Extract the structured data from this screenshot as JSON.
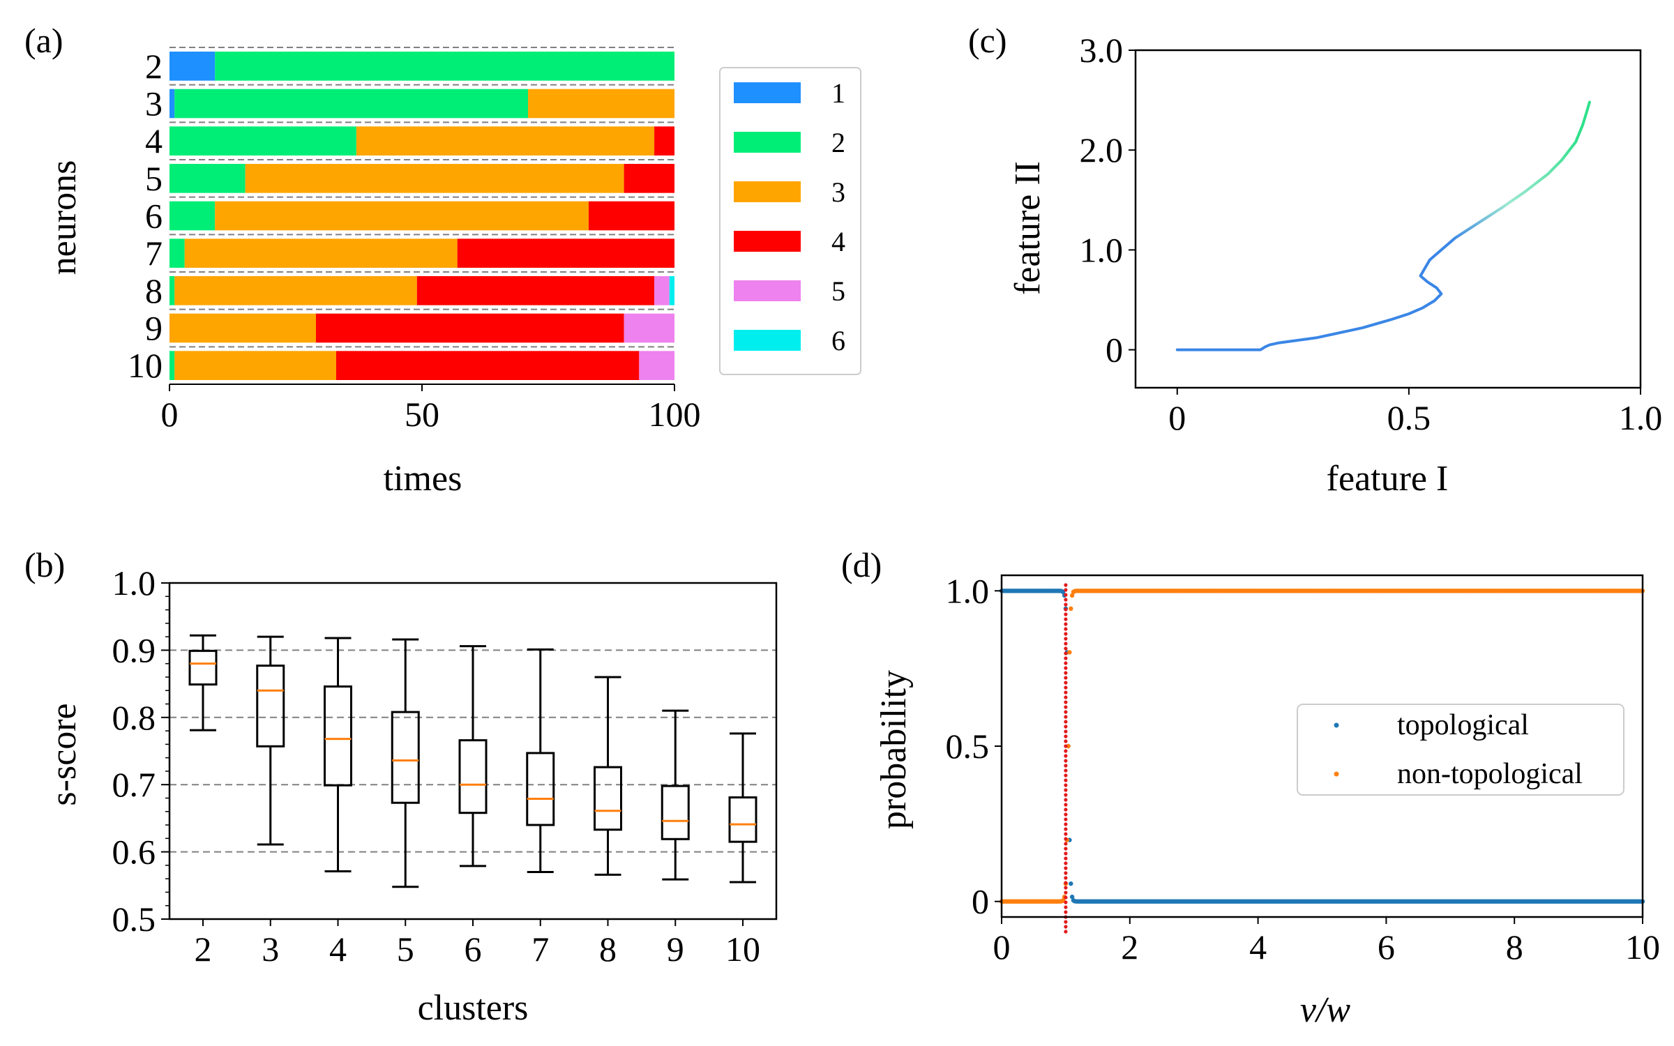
{
  "colors": {
    "c1": "#1e90ff",
    "c2": "#00ee76",
    "c3": "#ffa500",
    "c4": "#ff0000",
    "c5": "#ee82ee",
    "c6": "#00eeee",
    "mplblue": "#1f77b4",
    "mplorange": "#ff7f0e",
    "median": "#ff7f0e",
    "grid": "#808080",
    "critical": "#e31a1c"
  },
  "chart_data": [
    {
      "id": "a",
      "panel_label": "(a)",
      "type": "bar",
      "stacked": true,
      "orientation": "horizontal",
      "xlabel": "times",
      "ylabel": "neurons",
      "xlim": [
        0,
        100
      ],
      "xticks": [
        "0",
        "50",
        "100"
      ],
      "xtick_values": [
        0,
        50,
        100
      ],
      "categories": [
        "2",
        "3",
        "4",
        "5",
        "6",
        "7",
        "8",
        "9",
        "10"
      ],
      "legend_labels": [
        "1",
        "2",
        "3",
        "4",
        "5",
        "6"
      ],
      "legend_position": "right, outside",
      "series": [
        {
          "name": "1",
          "values": [
            9,
            1,
            0,
            0,
            0,
            0,
            0,
            0,
            0
          ]
        },
        {
          "name": "2",
          "values": [
            91,
            70,
            37,
            15,
            9,
            3,
            1,
            0,
            1
          ]
        },
        {
          "name": "3",
          "values": [
            0,
            29,
            59,
            75,
            74,
            54,
            48,
            29,
            32
          ]
        },
        {
          "name": "4",
          "values": [
            0,
            0,
            4,
            10,
            17,
            43,
            47,
            61,
            60
          ]
        },
        {
          "name": "5",
          "values": [
            0,
            0,
            0,
            0,
            0,
            0,
            3,
            10,
            7
          ]
        },
        {
          "name": "6",
          "values": [
            0,
            0,
            0,
            0,
            0,
            0,
            1,
            0,
            0
          ]
        }
      ],
      "grid": "dashed separators between rows"
    },
    {
      "id": "b",
      "panel_label": "(b)",
      "type": "box",
      "xlabel": "clusters",
      "ylabel": "s-score",
      "ylim": [
        0.5,
        1.0
      ],
      "yticks": [
        "0.5",
        "0.6",
        "0.7",
        "0.8",
        "0.9",
        "1.0"
      ],
      "ytick_values": [
        0.5,
        0.6,
        0.7,
        0.8,
        0.9,
        1.0
      ],
      "gridlines": [
        0.6,
        0.7,
        0.8,
        0.9
      ],
      "categories": [
        "2",
        "3",
        "4",
        "5",
        "6",
        "7",
        "8",
        "9",
        "10"
      ],
      "boxes": [
        {
          "whislo": 0.781,
          "q1": 0.849,
          "med": 0.88,
          "q3": 0.899,
          "whishi": 0.922
        },
        {
          "whislo": 0.611,
          "q1": 0.757,
          "med": 0.84,
          "q3": 0.877,
          "whishi": 0.92
        },
        {
          "whislo": 0.571,
          "q1": 0.699,
          "med": 0.768,
          "q3": 0.846,
          "whishi": 0.918
        },
        {
          "whislo": 0.548,
          "q1": 0.673,
          "med": 0.736,
          "q3": 0.808,
          "whishi": 0.916
        },
        {
          "whislo": 0.579,
          "q1": 0.658,
          "med": 0.7,
          "q3": 0.766,
          "whishi": 0.906
        },
        {
          "whislo": 0.57,
          "q1": 0.64,
          "med": 0.679,
          "q3": 0.747,
          "whishi": 0.901
        },
        {
          "whislo": 0.566,
          "q1": 0.633,
          "med": 0.661,
          "q3": 0.726,
          "whishi": 0.86
        },
        {
          "whislo": 0.559,
          "q1": 0.619,
          "med": 0.646,
          "q3": 0.698,
          "whishi": 0.81
        },
        {
          "whislo": 0.555,
          "q1": 0.615,
          "med": 0.641,
          "q3": 0.681,
          "whishi": 0.776
        }
      ]
    },
    {
      "id": "c",
      "panel_label": "(c)",
      "type": "line",
      "xlabel": "feature I",
      "ylabel": "feature II",
      "xlim": [
        -0.09,
        1.0
      ],
      "ylim": [
        -0.38,
        3.0
      ],
      "xticks": [
        "0",
        "0.5",
        "1.0"
      ],
      "xtick_values": [
        0,
        0.5,
        1.0
      ],
      "yticks": [
        "0",
        "1.0",
        "2.0",
        "3.0"
      ],
      "ytick_values": [
        0,
        1.0,
        2.0,
        3.0
      ],
      "color_gradient": [
        "#3a86e6",
        "#9ee8d2",
        "#2ee08a"
      ],
      "x": [
        0.0,
        0.1,
        0.18,
        0.19,
        0.2,
        0.22,
        0.3,
        0.4,
        0.46,
        0.5,
        0.53,
        0.555,
        0.57,
        0.56,
        0.54,
        0.525,
        0.535,
        0.545,
        0.56,
        0.6,
        0.65,
        0.7,
        0.75,
        0.8,
        0.83,
        0.86,
        0.875,
        0.885,
        0.89
      ],
      "y": [
        0.0,
        0.0,
        0.0,
        0.03,
        0.05,
        0.07,
        0.12,
        0.22,
        0.3,
        0.36,
        0.42,
        0.49,
        0.56,
        0.62,
        0.68,
        0.74,
        0.82,
        0.9,
        0.96,
        1.12,
        1.27,
        1.42,
        1.58,
        1.76,
        1.9,
        2.08,
        2.25,
        2.4,
        2.48
      ]
    },
    {
      "id": "d",
      "panel_label": "(d)",
      "type": "scatter",
      "xlabel": "v/w",
      "ylabel": "probability",
      "xlim": [
        0,
        10
      ],
      "ylim": [
        -0.05,
        1.05
      ],
      "xticks": [
        "0",
        "2",
        "4",
        "6",
        "8",
        "10"
      ],
      "xtick_values": [
        0,
        2,
        4,
        6,
        8,
        10
      ],
      "yticks": [
        "0",
        "0.5",
        "1.0"
      ],
      "ytick_values": [
        0,
        0.5,
        1.0
      ],
      "critical_x": 1.0,
      "legend_position": "center-right",
      "series": [
        {
          "name": "topological",
          "description": "1.0 for v/w below 1, 0 above 1"
        },
        {
          "name": "non-topological",
          "description": "0 for v/w below 1, 1.0 above 1"
        }
      ]
    }
  ]
}
